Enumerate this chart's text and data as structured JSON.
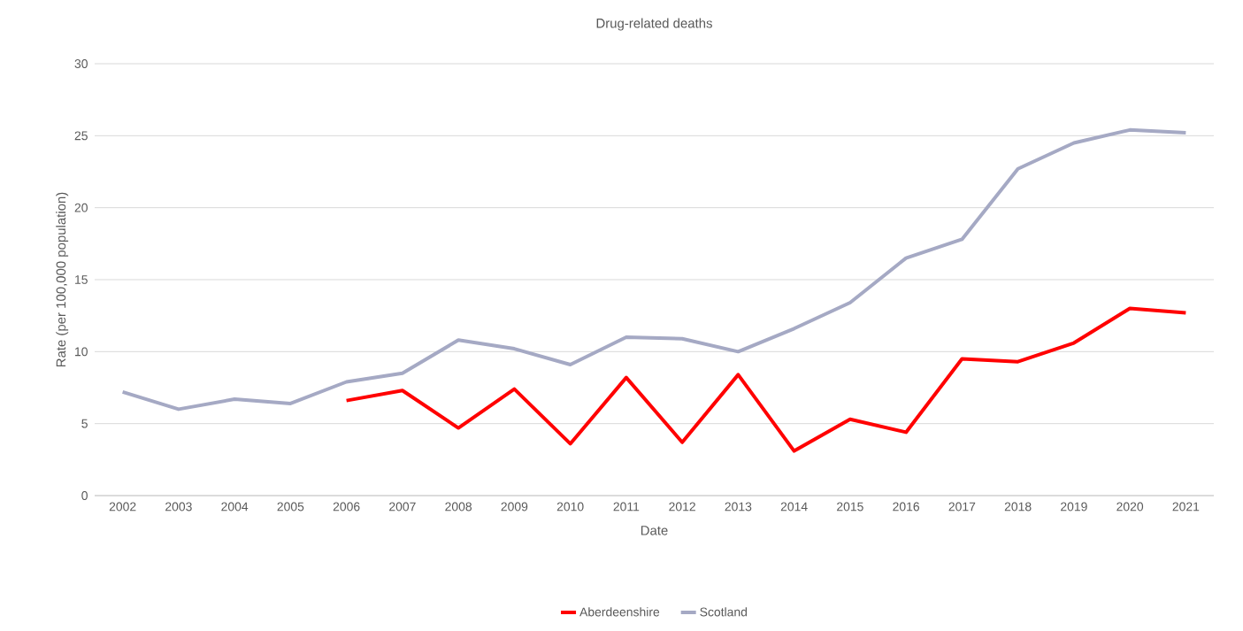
{
  "chart_data": {
    "type": "line",
    "title": "Drug-related deaths",
    "xlabel": "Date",
    "ylabel": "Rate (per 100,000 population)",
    "categories": [
      "2002",
      "2003",
      "2004",
      "2005",
      "2006",
      "2007",
      "2008",
      "2009",
      "2010",
      "2011",
      "2012",
      "2013",
      "2014",
      "2015",
      "2016",
      "2017",
      "2018",
      "2019",
      "2020",
      "2021"
    ],
    "series": [
      {
        "name": "Aberdeenshire",
        "color": "#ff0000",
        "values": [
          null,
          null,
          null,
          null,
          6.6,
          7.3,
          4.7,
          7.4,
          3.6,
          8.2,
          3.7,
          8.4,
          3.1,
          5.3,
          4.4,
          9.5,
          9.3,
          10.6,
          13.0,
          12.7
        ]
      },
      {
        "name": "Scotland",
        "color": "#a5a9c4",
        "values": [
          7.2,
          6.0,
          6.7,
          6.4,
          7.9,
          8.5,
          10.8,
          10.2,
          9.1,
          11.0,
          10.9,
          10.0,
          11.6,
          13.4,
          16.5,
          17.8,
          22.7,
          24.5,
          25.4,
          25.2
        ]
      }
    ],
    "ylim": [
      0,
      30
    ],
    "yticks": [
      0,
      5,
      10,
      15,
      20,
      25,
      30
    ],
    "grid": "y",
    "legend": "bottom",
    "marker": "none",
    "line_style": "solid"
  }
}
